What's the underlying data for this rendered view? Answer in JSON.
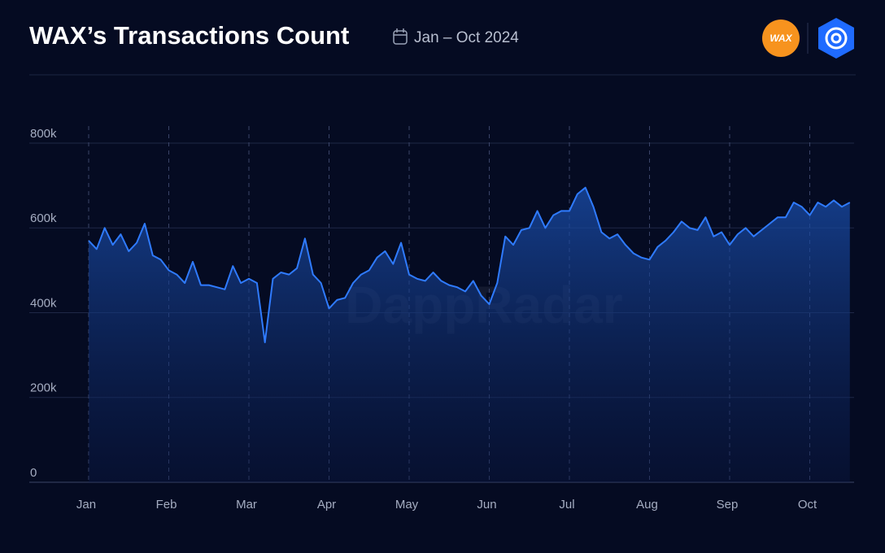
{
  "chart_data": {
    "type": "area",
    "title": "WAX’s Transactions Count",
    "subtitle": "Jan – Oct 2024",
    "logo_text": "WAX",
    "watermark": "DappRadar",
    "color": "#2f7bff",
    "grid": true,
    "categories": [
      "Jan",
      null,
      null,
      null,
      null,
      null,
      null,
      null,
      null,
      null,
      "Feb",
      null,
      null,
      null,
      null,
      null,
      null,
      null,
      null,
      null,
      "Mar",
      null,
      null,
      null,
      null,
      null,
      null,
      null,
      null,
      null,
      "Apr",
      null,
      null,
      null,
      null,
      null,
      null,
      null,
      null,
      null,
      "May",
      null,
      null,
      null,
      null,
      null,
      null,
      null,
      null,
      null,
      "Jun",
      null,
      null,
      null,
      null,
      null,
      null,
      null,
      null,
      null,
      "Jul",
      null,
      null,
      null,
      null,
      null,
      null,
      null,
      null,
      null,
      "Aug",
      null,
      null,
      null,
      null,
      null,
      null,
      null,
      null,
      null,
      "Sep",
      null,
      null,
      null,
      null,
      null,
      null,
      null,
      null,
      null,
      "Oct",
      null,
      null,
      null,
      null,
      null
    ],
    "values": [
      570000,
      550000,
      600000,
      560000,
      585000,
      545000,
      565000,
      610000,
      535000,
      525000,
      500000,
      490000,
      470000,
      520000,
      465000,
      465000,
      460000,
      455000,
      510000,
      470000,
      480000,
      470000,
      330000,
      480000,
      495000,
      490000,
      505000,
      575000,
      490000,
      470000,
      410000,
      430000,
      435000,
      470000,
      490000,
      500000,
      530000,
      545000,
      515000,
      565000,
      490000,
      480000,
      475000,
      495000,
      475000,
      465000,
      460000,
      450000,
      475000,
      440000,
      420000,
      470000,
      580000,
      560000,
      595000,
      600000,
      640000,
      600000,
      630000,
      640000,
      640000,
      680000,
      695000,
      650000,
      590000,
      575000,
      585000,
      560000,
      540000,
      530000,
      525000,
      555000,
      570000,
      590000,
      615000,
      600000,
      595000,
      625000,
      580000,
      590000,
      560000,
      585000,
      600000,
      580000,
      595000,
      610000,
      625000,
      625000,
      660000,
      650000,
      630000,
      660000,
      650000,
      665000,
      650000,
      660000
    ],
    "ylim": [
      0,
      800000
    ],
    "yticks": [
      0,
      {
        "value": 200000,
        "label": "200k"
      },
      {
        "value": 400000,
        "label": "400k"
      },
      {
        "value": 600000,
        "label": "600k"
      },
      {
        "value": 800000,
        "label": "800k"
      }
    ]
  }
}
